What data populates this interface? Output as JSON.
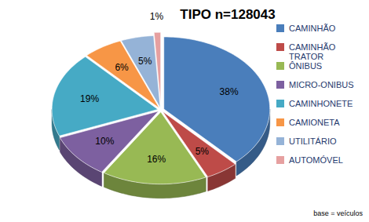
{
  "chart_data": {
    "type": "pie",
    "title": "TIPO n=128043",
    "categories": [
      "CAMINHÃO",
      "CAMINHÃO TRATOR",
      "ÔNIBUS",
      "MICRO-ONIBUS",
      "CAMINHONETE",
      "CAMIONETA",
      "UTILITÁRIO",
      "AUTOMÓVEL"
    ],
    "values": [
      38,
      5,
      16,
      10,
      19,
      6,
      5,
      1
    ],
    "value_labels": [
      "38%",
      "5%",
      "16%",
      "10%",
      "19%",
      "6%",
      "5%",
      "1%"
    ],
    "colors": [
      "#4a7ebb",
      "#be4b48",
      "#98b954",
      "#7d60a0",
      "#46aac5",
      "#f79646",
      "#95b3d7",
      "#e6a0a0"
    ],
    "data_labels": true,
    "legend": "right",
    "annotations": [
      "base = veículos"
    ]
  }
}
